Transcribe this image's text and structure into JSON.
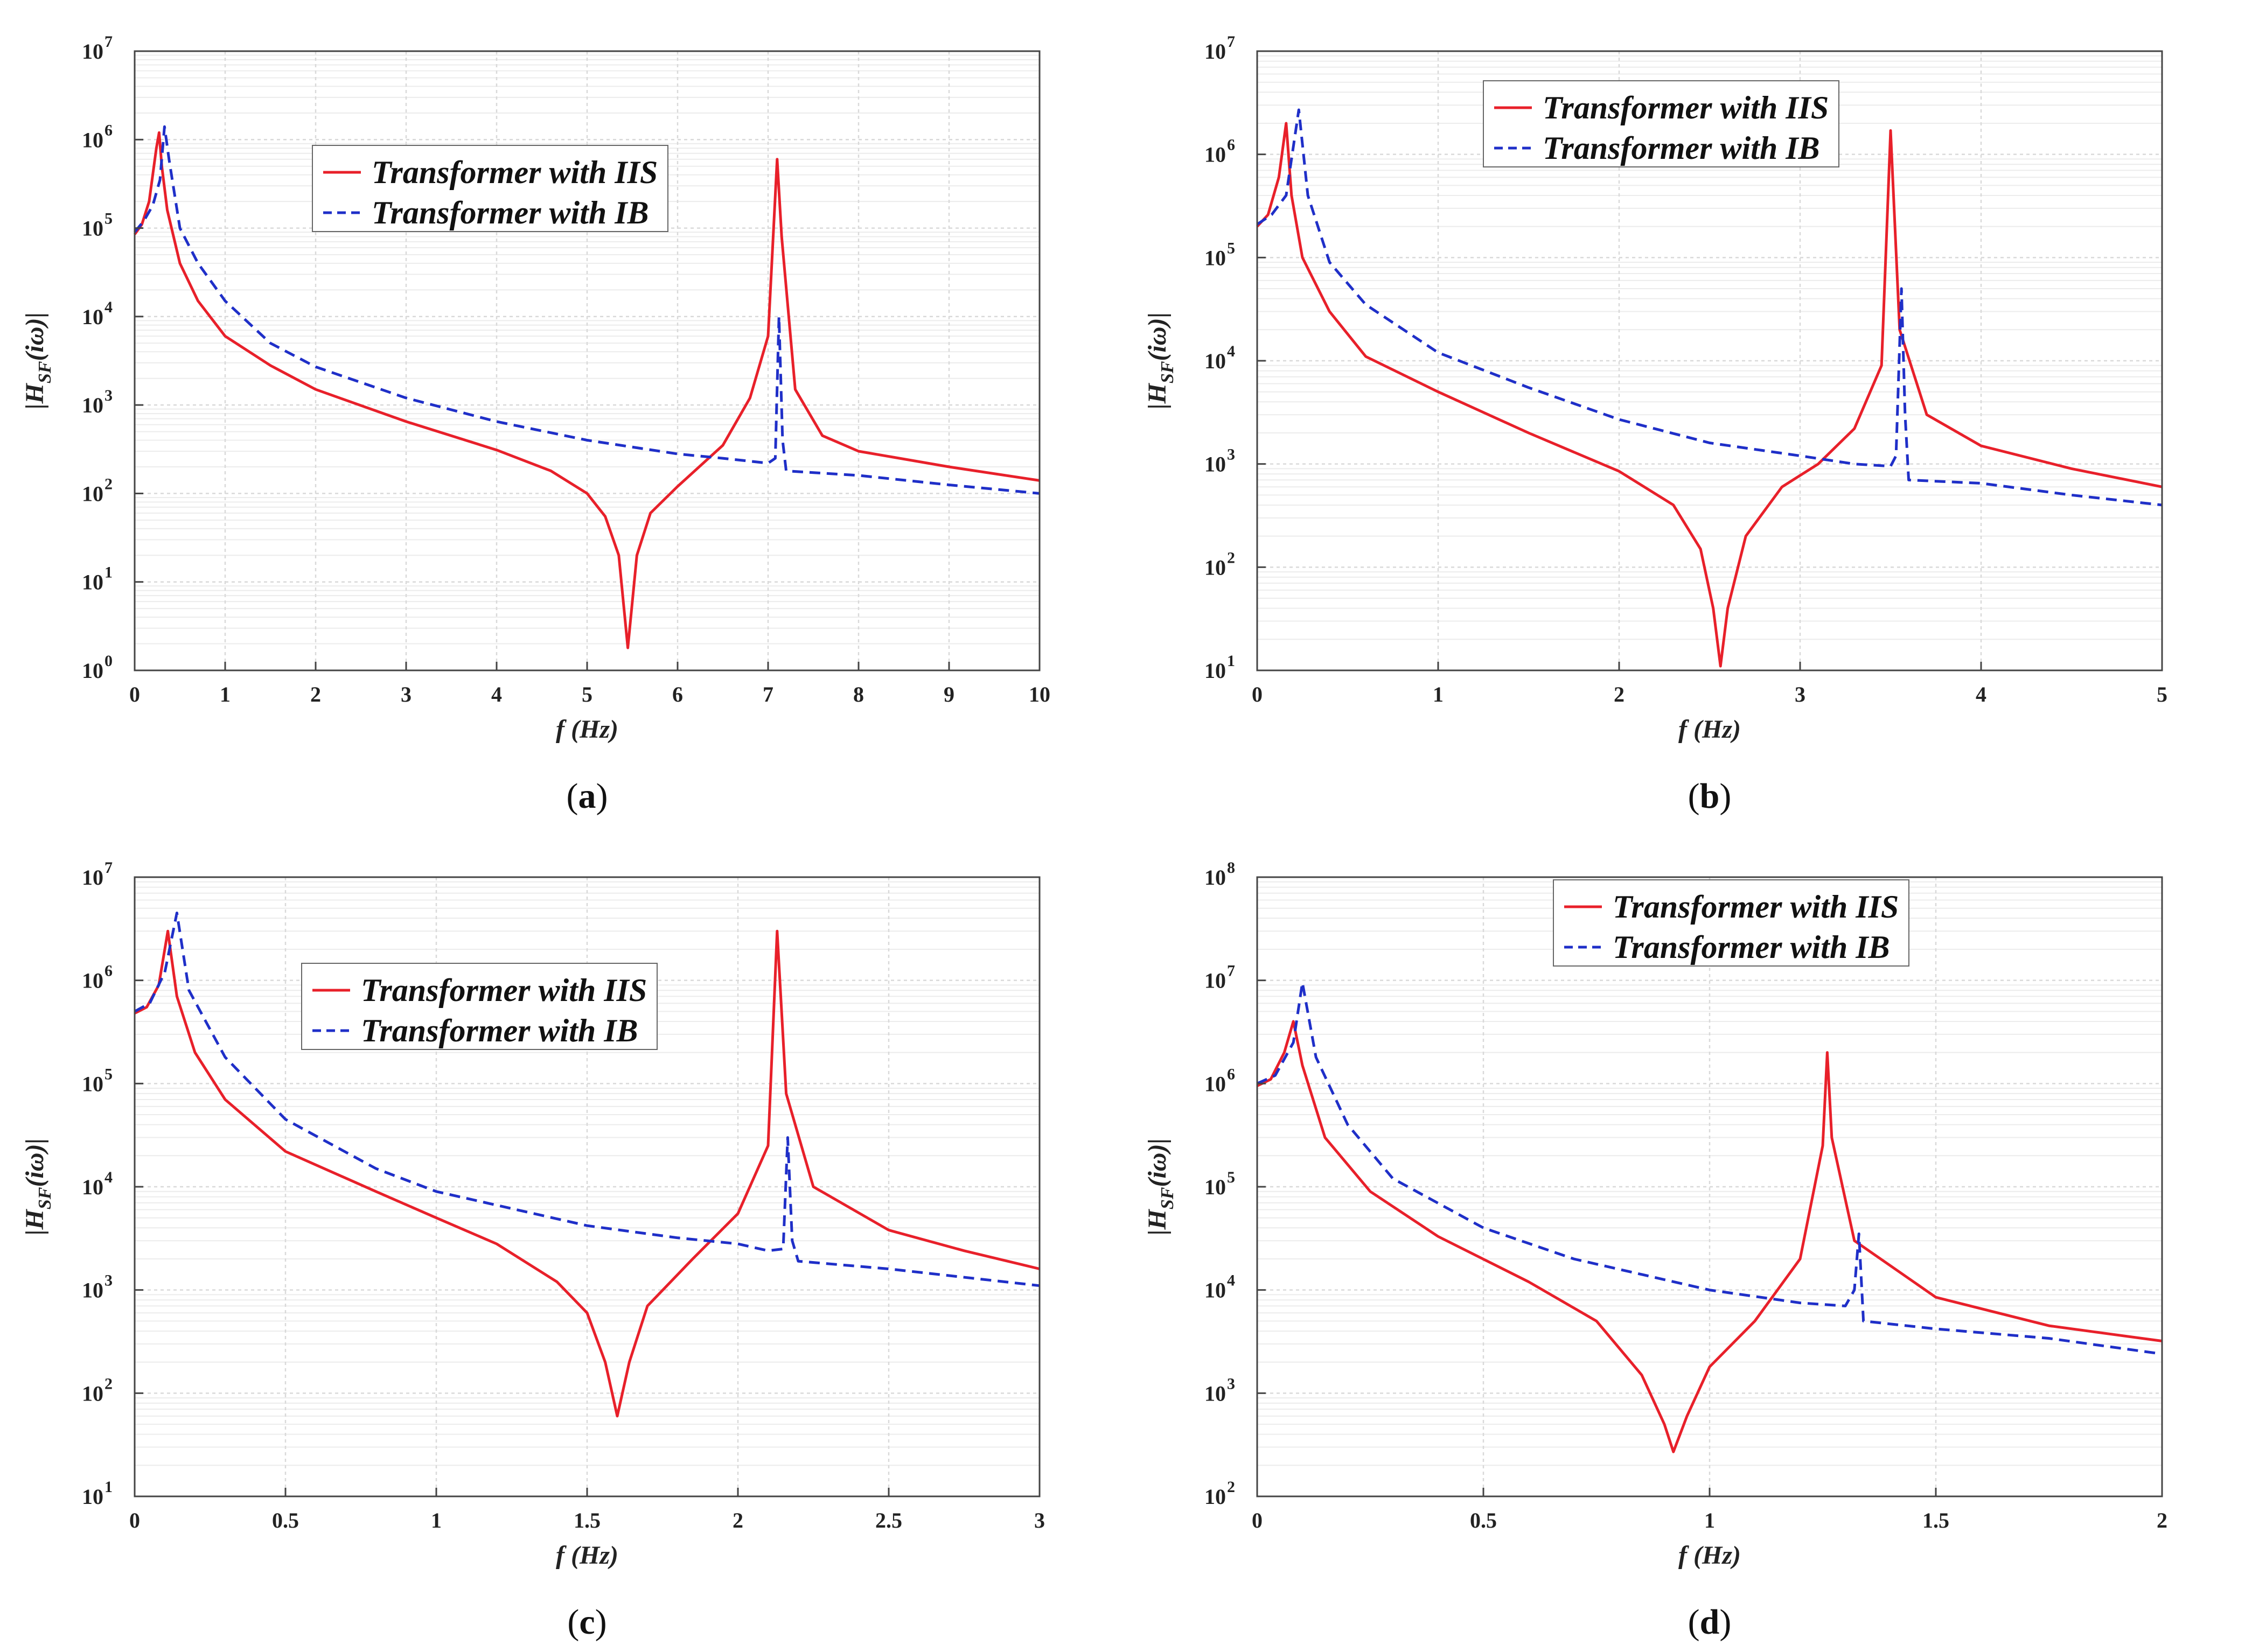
{
  "figure": {
    "series_names": [
      "Transformer with IIS",
      "Transformer with IB"
    ],
    "colors": {
      "iis": "#e8202a",
      "ib": "#1f2fc8",
      "grid": "#d9d9d9",
      "axis": "#444444"
    }
  },
  "chart_data": [
    {
      "id": "a",
      "type": "line",
      "caption_letter": "a",
      "xlabel": "f (Hz)",
      "ylabel": "|H_SF(iω)|",
      "xlim": [
        0,
        10
      ],
      "ylim_log10": [
        0,
        7
      ],
      "xticks": [
        "0",
        "1",
        "2",
        "3",
        "4",
        "5",
        "6",
        "7",
        "8",
        "9",
        "10"
      ],
      "yticks_exp": [
        "0",
        "1",
        "2",
        "3",
        "4",
        "5",
        "6",
        "7"
      ],
      "legend_position": "upper-center",
      "series": [
        {
          "name": "Transformer with IIS",
          "style": "solid",
          "points": [
            [
              0,
              85000
            ],
            [
              0.08,
              110000
            ],
            [
              0.16,
              200000
            ],
            [
              0.24,
              800000
            ],
            [
              0.27,
              1200000
            ],
            [
              0.3,
              500000
            ],
            [
              0.36,
              160000
            ],
            [
              0.5,
              40000
            ],
            [
              0.7,
              15000
            ],
            [
              1,
              6000
            ],
            [
              1.5,
              2800
            ],
            [
              2,
              1500
            ],
            [
              3,
              650
            ],
            [
              4,
              310
            ],
            [
              4.6,
              180
            ],
            [
              5,
              100
            ],
            [
              5.2,
              55
            ],
            [
              5.35,
              20
            ],
            [
              5.45,
              1.8
            ],
            [
              5.55,
              20
            ],
            [
              5.7,
              60
            ],
            [
              6,
              120
            ],
            [
              6.5,
              350
            ],
            [
              6.8,
              1200
            ],
            [
              7.0,
              6000
            ],
            [
              7.1,
              600000
            ],
            [
              7.15,
              80000
            ],
            [
              7.3,
              1500
            ],
            [
              7.6,
              450
            ],
            [
              8,
              300
            ],
            [
              9,
              200
            ],
            [
              10,
              140
            ]
          ]
        },
        {
          "name": "Transformer with IB",
          "style": "dashed",
          "points": [
            [
              0,
              90000
            ],
            [
              0.1,
              120000
            ],
            [
              0.2,
              180000
            ],
            [
              0.28,
              350000
            ],
            [
              0.33,
              1400000
            ],
            [
              0.38,
              600000
            ],
            [
              0.5,
              100000
            ],
            [
              0.7,
              40000
            ],
            [
              1,
              15000
            ],
            [
              1.5,
              5000
            ],
            [
              2,
              2700
            ],
            [
              3,
              1200
            ],
            [
              4,
              650
            ],
            [
              5,
              400
            ],
            [
              6,
              280
            ],
            [
              6.5,
              250
            ],
            [
              7,
              220
            ],
            [
              7.08,
              250
            ],
            [
              7.12,
              10000
            ],
            [
              7.16,
              400
            ],
            [
              7.2,
              180
            ],
            [
              8,
              160
            ],
            [
              9,
              125
            ],
            [
              10,
              100
            ]
          ]
        }
      ]
    },
    {
      "id": "b",
      "type": "line",
      "caption_letter": "b",
      "xlabel": "f (Hz)",
      "ylabel": "|H_SF(iω)|",
      "xlim": [
        0,
        5
      ],
      "ylim_log10": [
        1,
        7
      ],
      "xticks": [
        "0",
        "1",
        "2",
        "3",
        "4",
        "5"
      ],
      "yticks_exp": [
        "1",
        "2",
        "3",
        "4",
        "5",
        "6",
        "7"
      ],
      "legend_position": "upper-center",
      "series": [
        {
          "name": "Transformer with IIS",
          "style": "solid",
          "points": [
            [
              0,
              200000
            ],
            [
              0.06,
              260000
            ],
            [
              0.12,
              600000
            ],
            [
              0.16,
              2000000
            ],
            [
              0.19,
              400000
            ],
            [
              0.25,
              100000
            ],
            [
              0.4,
              30000
            ],
            [
              0.6,
              11000
            ],
            [
              1,
              5000
            ],
            [
              1.5,
              2000
            ],
            [
              2,
              850
            ],
            [
              2.3,
              400
            ],
            [
              2.45,
              150
            ],
            [
              2.52,
              40
            ],
            [
              2.56,
              11
            ],
            [
              2.6,
              40
            ],
            [
              2.7,
              200
            ],
            [
              2.9,
              600
            ],
            [
              3.1,
              1000
            ],
            [
              3.3,
              2200
            ],
            [
              3.45,
              9000
            ],
            [
              3.5,
              1700000
            ],
            [
              3.55,
              20000
            ],
            [
              3.7,
              3000
            ],
            [
              4,
              1500
            ],
            [
              4.5,
              900
            ],
            [
              5,
              600
            ]
          ]
        },
        {
          "name": "Transformer with IB",
          "style": "dashed",
          "points": [
            [
              0,
              210000
            ],
            [
              0.08,
              260000
            ],
            [
              0.16,
              400000
            ],
            [
              0.23,
              2700000
            ],
            [
              0.28,
              400000
            ],
            [
              0.4,
              90000
            ],
            [
              0.6,
              35000
            ],
            [
              1,
              12000
            ],
            [
              1.5,
              5500
            ],
            [
              2,
              2700
            ],
            [
              2.5,
              1600
            ],
            [
              3,
              1200
            ],
            [
              3.3,
              1000
            ],
            [
              3.5,
              950
            ],
            [
              3.53,
              1200
            ],
            [
              3.56,
              50000
            ],
            [
              3.58,
              3000
            ],
            [
              3.6,
              700
            ],
            [
              4,
              650
            ],
            [
              4.5,
              500
            ],
            [
              5,
              400
            ]
          ]
        }
      ]
    },
    {
      "id": "c",
      "type": "line",
      "caption_letter": "c",
      "xlabel": "f (Hz)",
      "ylabel": "|H_SF(iω)|",
      "xlim": [
        0,
        3
      ],
      "ylim_log10": [
        1,
        7
      ],
      "xticks": [
        "0",
        "0.5",
        "1",
        "1.5",
        "2",
        "2.5",
        "3"
      ],
      "yticks_exp": [
        "1",
        "2",
        "3",
        "4",
        "5",
        "6",
        "7"
      ],
      "legend_position": "upper-center",
      "series": [
        {
          "name": "Transformer with IIS",
          "style": "solid",
          "points": [
            [
              0,
              480000
            ],
            [
              0.04,
              550000
            ],
            [
              0.08,
              900000
            ],
            [
              0.11,
              3000000
            ],
            [
              0.14,
              700000
            ],
            [
              0.2,
              200000
            ],
            [
              0.3,
              70000
            ],
            [
              0.5,
              22000
            ],
            [
              0.8,
              9000
            ],
            [
              1,
              5000
            ],
            [
              1.2,
              2800
            ],
            [
              1.4,
              1200
            ],
            [
              1.5,
              600
            ],
            [
              1.56,
              200
            ],
            [
              1.6,
              60
            ],
            [
              1.64,
              200
            ],
            [
              1.7,
              700
            ],
            [
              1.85,
              2000
            ],
            [
              2,
              5500
            ],
            [
              2.1,
              25000
            ],
            [
              2.13,
              3000000
            ],
            [
              2.16,
              80000
            ],
            [
              2.25,
              10000
            ],
            [
              2.5,
              3800
            ],
            [
              2.75,
              2400
            ],
            [
              3,
              1600
            ]
          ]
        },
        {
          "name": "Transformer with IB",
          "style": "dashed",
          "points": [
            [
              0,
              500000
            ],
            [
              0.05,
              600000
            ],
            [
              0.1,
              1200000
            ],
            [
              0.14,
              4500000
            ],
            [
              0.18,
              800000
            ],
            [
              0.3,
              180000
            ],
            [
              0.5,
              45000
            ],
            [
              0.8,
              15000
            ],
            [
              1,
              9000
            ],
            [
              1.5,
              4200
            ],
            [
              1.8,
              3200
            ],
            [
              2,
              2800
            ],
            [
              2.1,
              2400
            ],
            [
              2.15,
              2500
            ],
            [
              2.165,
              30000
            ],
            [
              2.18,
              3000
            ],
            [
              2.2,
              1900
            ],
            [
              2.5,
              1600
            ],
            [
              3,
              1100
            ]
          ]
        }
      ]
    },
    {
      "id": "d",
      "type": "line",
      "caption_letter": "d",
      "xlabel": "f (Hz)",
      "ylabel": "|H_SF(iω)|",
      "xlim": [
        0,
        2
      ],
      "ylim_log10": [
        2,
        8
      ],
      "xticks": [
        "0",
        "0.5",
        "1",
        "1.5",
        "2"
      ],
      "yticks_exp": [
        "2",
        "3",
        "4",
        "5",
        "6",
        "7",
        "8"
      ],
      "legend_position": "upper-center",
      "series": [
        {
          "name": "Transformer with IIS",
          "style": "solid",
          "points": [
            [
              0,
              950000
            ],
            [
              0.03,
              1100000
            ],
            [
              0.06,
              2000000
            ],
            [
              0.08,
              4000000
            ],
            [
              0.1,
              1500000
            ],
            [
              0.15,
              300000
            ],
            [
              0.25,
              90000
            ],
            [
              0.4,
              33000
            ],
            [
              0.6,
              12000
            ],
            [
              0.75,
              5000
            ],
            [
              0.85,
              1500
            ],
            [
              0.9,
              500
            ],
            [
              0.92,
              270
            ],
            [
              0.95,
              600
            ],
            [
              1,
              1800
            ],
            [
              1.1,
              5000
            ],
            [
              1.2,
              20000
            ],
            [
              1.25,
              250000
            ],
            [
              1.26,
              2000000
            ],
            [
              1.27,
              300000
            ],
            [
              1.32,
              30000
            ],
            [
              1.5,
              8500
            ],
            [
              1.75,
              4500
            ],
            [
              2,
              3200
            ]
          ]
        },
        {
          "name": "Transformer with IB",
          "style": "dashed",
          "points": [
            [
              0,
              1000000
            ],
            [
              0.04,
              1200000
            ],
            [
              0.08,
              2500000
            ],
            [
              0.1,
              9500000
            ],
            [
              0.13,
              1800000
            ],
            [
              0.2,
              400000
            ],
            [
              0.3,
              120000
            ],
            [
              0.5,
              40000
            ],
            [
              0.7,
              20000
            ],
            [
              1,
              10000
            ],
            [
              1.2,
              7500
            ],
            [
              1.3,
              7000
            ],
            [
              1.32,
              10000
            ],
            [
              1.33,
              35000
            ],
            [
              1.34,
              5000
            ],
            [
              1.5,
              4200
            ],
            [
              1.75,
              3400
            ],
            [
              2,
              2400
            ]
          ]
        }
      ]
    }
  ]
}
